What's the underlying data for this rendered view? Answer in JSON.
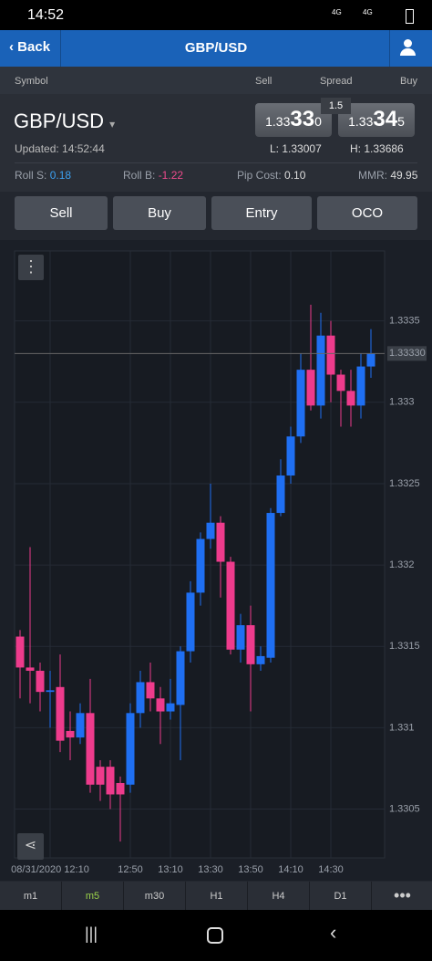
{
  "status_bar": {
    "time": "14:52",
    "network": "4G"
  },
  "nav": {
    "back": "Back",
    "title": "GBP/USD"
  },
  "header": {
    "symbol": "Symbol",
    "sell": "Sell",
    "spread": "Spread",
    "buy": "Buy"
  },
  "quote": {
    "symbol": "GBP/USD",
    "spread": "1.5",
    "sell": {
      "big": "1.33",
      "pips": "33",
      "fraction": "0"
    },
    "buy": {
      "big": "1.33",
      "pips": "34",
      "fraction": "5"
    },
    "updated_label": "Updated:",
    "updated": "14:52:44",
    "low_label": "L:",
    "low": "1.33007",
    "high_label": "H:",
    "high": "1.33686",
    "roll_s_label": "Roll S:",
    "roll_s": "0.18",
    "roll_b_label": "Roll B:",
    "roll_b": "-1.22",
    "pip_cost_label": "Pip Cost:",
    "pip_cost": "0.10",
    "mmr_label": "MMR:",
    "mmr": "49.95"
  },
  "actions": [
    "Sell",
    "Buy",
    "Entry",
    "OCO"
  ],
  "chart_data": {
    "type": "candlestick",
    "up_color": "#1f6ff2",
    "down_color": "#ee3b8c",
    "grid": true,
    "x": [
      "11:55",
      "12:00",
      "12:05",
      "12:10",
      "12:15",
      "12:20",
      "12:25",
      "12:30",
      "12:35",
      "12:40",
      "12:45",
      "12:50",
      "12:55",
      "13:00",
      "13:05",
      "13:10",
      "13:15",
      "13:20",
      "13:25",
      "13:30",
      "13:35",
      "13:40",
      "13:45",
      "13:50",
      "13:55",
      "14:00",
      "14:05",
      "14:10",
      "14:15",
      "14:20",
      "14:25",
      "14:30",
      "14:35",
      "14:40",
      "14:45",
      "14:50"
    ],
    "open": [
      1.33156,
      1.33137,
      1.33135,
      1.33122,
      1.33125,
      1.33098,
      1.33094,
      1.33109,
      1.33076,
      1.33076,
      1.33066,
      1.33065,
      1.33109,
      1.33128,
      1.33118,
      1.3311,
      1.33114,
      1.33147,
      1.33183,
      1.33216,
      1.33226,
      1.33202,
      1.33148,
      1.33163,
      1.33139,
      1.33143,
      1.33232,
      1.33255,
      1.33279,
      1.3332,
      1.33298,
      1.33341,
      1.33317,
      1.33307,
      1.33298,
      1.33322
    ],
    "high": [
      1.3316,
      1.33211,
      1.3314,
      1.33135,
      1.33145,
      1.3311,
      1.33115,
      1.3313,
      1.3308,
      1.3308,
      1.3307,
      1.33115,
      1.33135,
      1.3314,
      1.33125,
      1.3313,
      1.3315,
      1.3319,
      1.3322,
      1.3325,
      1.3323,
      1.33205,
      1.3317,
      1.33175,
      1.3315,
      1.33235,
      1.33265,
      1.33285,
      1.3333,
      1.3336,
      1.33355,
      1.3335,
      1.3332,
      1.3332,
      1.3333,
      1.33345
    ],
    "low": [
      1.33118,
      1.33115,
      1.3311,
      1.331,
      1.33085,
      1.3308,
      1.3309,
      1.3306,
      1.33055,
      1.3305,
      1.3303,
      1.3306,
      1.331,
      1.3311,
      1.3309,
      1.33105,
      1.3308,
      1.3314,
      1.33175,
      1.3321,
      1.3318,
      1.33145,
      1.3314,
      1.3311,
      1.33135,
      1.3314,
      1.3323,
      1.3325,
      1.33275,
      1.33295,
      1.3329,
      1.333,
      1.33285,
      1.33285,
      1.3329,
      1.33315
    ],
    "close": [
      1.33137,
      1.33135,
      1.33122,
      1.33123,
      1.33092,
      1.33094,
      1.33109,
      1.33065,
      1.33065,
      1.33059,
      1.33059,
      1.33109,
      1.33128,
      1.33118,
      1.3311,
      1.33115,
      1.33147,
      1.33183,
      1.33216,
      1.33226,
      1.33202,
      1.33148,
      1.33163,
      1.33139,
      1.33144,
      1.33232,
      1.33255,
      1.33279,
      1.3332,
      1.33298,
      1.33341,
      1.33317,
      1.33307,
      1.33298,
      1.33322,
      1.3333
    ],
    "ylim": [
      1.3302,
      1.33393
    ],
    "yticks": [
      1.3305,
      1.331,
      1.3315,
      1.332,
      1.3325,
      1.333,
      1.3335
    ],
    "xticks": [
      {
        "value": "12:10",
        "label": "08/31/2020 12:10"
      },
      "12:50",
      "13:10",
      "13:30",
      "13:50",
      "14:10",
      "14:30"
    ],
    "current_price": {
      "value": 1.3333,
      "label": "1.33330"
    }
  },
  "timeframes": [
    "m1",
    "m5",
    "m30",
    "H1",
    "H4",
    "D1"
  ]
}
